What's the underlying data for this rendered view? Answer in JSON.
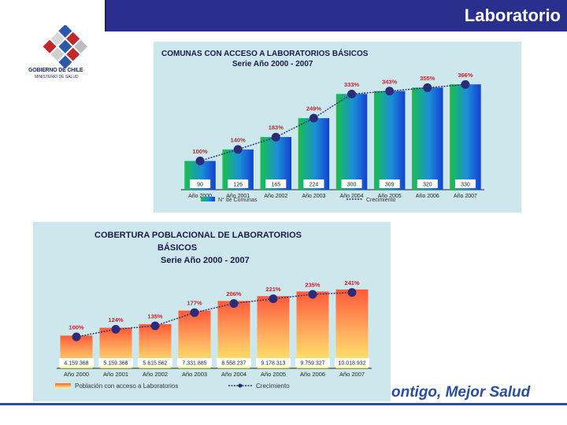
{
  "header": {
    "title": "Laboratorio"
  },
  "logo": {
    "line1": "GOBIERNO DE CHILE",
    "line2": "MINISTERIO DE SALUD"
  },
  "footer": {
    "slogan": "ontigo, Mejor Salud"
  },
  "colors": {
    "title_bar": "#2a2e8c",
    "panel_bg": "#cde8ec",
    "growth_line": "#2b2b7a",
    "slogan": "#2a4f9f"
  },
  "chart_data": [
    {
      "type": "bar",
      "title_line1": "COMUNAS CON ACCESO A LABORATORIOS BÁSICOS",
      "title_line2": "Serie Año 2000 - 2007",
      "categories": [
        "Año 2000",
        "Año 2001",
        "Año 2002",
        "Año 2003",
        "Año 2004",
        "Año 2005",
        "Año 2006",
        "Año 2007"
      ],
      "series": [
        {
          "name": "N° de Comunas",
          "values": [
            90,
            126,
            165,
            224,
            300,
            309,
            320,
            330
          ],
          "labels": [
            "90",
            "126",
            "165",
            "224",
            "300",
            "309",
            "320",
            "330"
          ]
        },
        {
          "name": "Crecimiento",
          "values": [
            100,
            140,
            183,
            249,
            333,
            343,
            355,
            366
          ],
          "labels": [
            "100%",
            "140%",
            "183%",
            "249%",
            "333%",
            "343%",
            "355%",
            "366%"
          ]
        }
      ],
      "ylim": [
        0,
        360
      ],
      "growth_ylim": [
        0,
        400
      ],
      "legend": "bottom"
    },
    {
      "type": "bar",
      "title_line1": "COBERTURA POBLACIONAL DE LABORATORIOS",
      "title_line2": "BÁSICOS",
      "title_line3": "Serie Año 2000 - 2007",
      "categories": [
        "Año 2000",
        "Año 2001",
        "Año 2002",
        "Año 2003",
        "Año 2004",
        "Año 2005",
        "Año 2006",
        "Año 2007"
      ],
      "series": [
        {
          "name": "Población con acceso a Laboratorios",
          "values": [
            4159368,
            5159368,
            5615562,
            7331885,
            8558237,
            9178313,
            9759327,
            10018932
          ],
          "labels": [
            "4.159.368",
            "5.159.368",
            "5.615.562",
            "7.331.885",
            "8.558.237",
            "9.178.313",
            "9.759.327",
            "10.018.932"
          ]
        },
        {
          "name": "Crecimiento",
          "values": [
            100,
            124,
            135,
            177,
            206,
            221,
            235,
            241
          ],
          "labels": [
            "100%",
            "124%",
            "135%",
            "177%",
            "206%",
            "221%",
            "235%",
            "241%"
          ]
        }
      ],
      "ylim": [
        0,
        12000000
      ],
      "growth_ylim": [
        0,
        300
      ],
      "legend": "bottom"
    }
  ]
}
